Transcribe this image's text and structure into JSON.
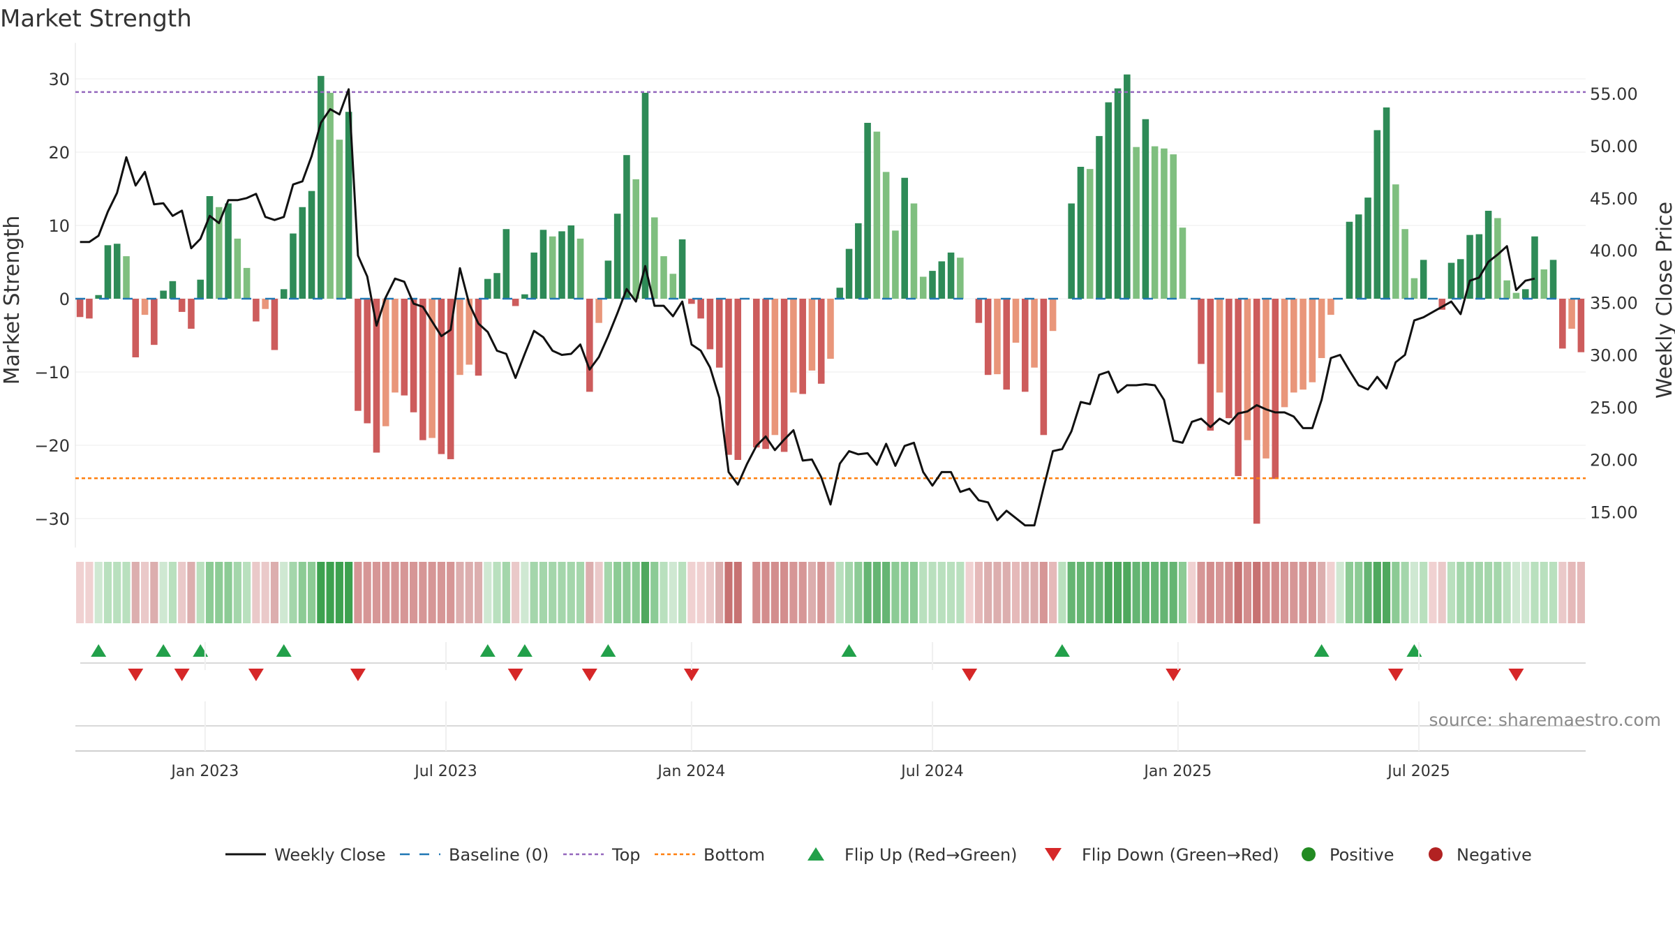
{
  "chart_data": {
    "type": "bar",
    "title": "Market Strength",
    "ylabel_left": "Market Strength",
    "ylabel_right": "Weekly Close Price",
    "ylim_left": [
      -33,
      33
    ],
    "ylim_right": [
      12.25,
      58.5
    ],
    "yticks_left": [
      "30",
      "20",
      "10",
      "0",
      "−10",
      "−20",
      "−30"
    ],
    "yticks_left_values": [
      30,
      20,
      10,
      0,
      -10,
      -20,
      -30
    ],
    "yticks_right": [
      "55.00",
      "50.00",
      "45.00",
      "40.00",
      "35.00",
      "30.00",
      "25.00",
      "20.00",
      "15.00"
    ],
    "yticks_right_values": [
      55,
      50,
      45,
      40,
      35,
      30,
      25,
      20,
      15
    ],
    "xticks": [
      {
        "label": "Jan 2023",
        "week": 14
      },
      {
        "label": "Jul 2023",
        "week": 40
      },
      {
        "label": "Jan 2024",
        "week": 66.5
      },
      {
        "label": "Jul 2024",
        "week": 92.5
      },
      {
        "label": "Jan 2025",
        "week": 119
      },
      {
        "label": "Jul 2025",
        "week": 145
      }
    ],
    "top_line": 28.2,
    "bottom_line": -24.5,
    "source": "source: sharemaestro.com",
    "legend": [
      "Weekly Close",
      "Baseline (0)",
      "Top",
      "Bottom",
      "Flip Up (Red→Green)",
      "Flip Down (Green→Red)",
      "Positive",
      "Negative"
    ],
    "strength": [
      -2.5,
      -2.7,
      0.5,
      7.3,
      7.5,
      5.8,
      -8,
      -2.2,
      -6.3,
      1.1,
      2.4,
      -1.8,
      -4.1,
      2.6,
      14,
      12.5,
      13,
      8.2,
      4.2,
      -3.1,
      -1.4,
      -7,
      1.3,
      8.9,
      12.5,
      14.7,
      30.4,
      28.1,
      21.7,
      25.5,
      -15.3,
      -17,
      -21,
      -17.4,
      -12.8,
      -13.2,
      -15.5,
      -19.3,
      -19,
      -21.2,
      -21.9,
      -10.4,
      -9,
      -10.5,
      2.7,
      3.5,
      9.5,
      -1,
      0.6,
      6.3,
      9.4,
      8.5,
      9.2,
      10,
      8.2,
      -12.7,
      -3.3,
      5.2,
      11.6,
      19.6,
      16.3,
      28.1,
      11.1,
      5.8,
      3.4,
      8.1,
      -0.7,
      -2.7,
      -6.9,
      -9.4,
      -21.3,
      -22,
      0,
      -20.3,
      -20.5,
      -18.6,
      -20.9,
      -12.8,
      -13,
      -9.8,
      -11.6,
      -8.2,
      1.5,
      6.8,
      10.3,
      24,
      22.8,
      17.3,
      9.3,
      16.5,
      13,
      3,
      3.8,
      5.1,
      6.3,
      5.6,
      0,
      -3.3,
      -10.4,
      -10.3,
      -12.4,
      -6,
      -12.7,
      -9.4,
      -18.6,
      -4.4,
      0,
      13,
      18,
      17.7,
      22.2,
      26.8,
      28.7,
      30.6,
      20.7,
      24.5,
      20.8,
      20.5,
      19.7,
      9.7,
      0,
      -8.9,
      -18,
      -12.8,
      -16.3,
      -24.2,
      -19.3,
      -30.7,
      -21.8,
      -24.6,
      -14.8,
      -12.8,
      -12.4,
      -11.4,
      -8.1,
      -2.2,
      0,
      10.5,
      11.5,
      13.8,
      23,
      26.1,
      15.6,
      9.5,
      2.8,
      5.3,
      0,
      -1.5,
      4.9,
      5.4,
      8.7,
      8.8,
      12,
      11,
      2.5,
      0.8,
      1.3,
      8.5,
      4,
      5.3,
      -6.8,
      -4.1,
      -7.3
    ],
    "close": [
      40.8,
      40.8,
      41.4,
      43.7,
      45.5,
      48.9,
      46.2,
      47.5,
      44.4,
      44.5,
      43.3,
      43.8,
      40.2,
      41.1,
      43.3,
      42.6,
      44.8,
      44.8,
      45,
      45.4,
      43.2,
      42.9,
      43.2,
      46.3,
      46.6,
      49,
      52.2,
      53.5,
      53,
      55.4,
      39.5,
      37.5,
      32.8,
      35.5,
      37.3,
      37,
      34.9,
      34.6,
      33.2,
      31.8,
      32.4,
      38.3,
      34.9,
      33,
      32.2,
      30.4,
      30.1,
      27.8,
      30.1,
      32.3,
      31.7,
      30.4,
      30,
      30.1,
      31,
      28.6,
      29.8,
      31.8,
      34,
      36.3,
      35.1,
      38.5,
      34.7,
      34.7,
      33.7,
      35.1,
      31,
      30.4,
      28.8,
      25.9,
      18.8,
      17.6,
      19.6,
      21.3,
      22.2,
      20.9,
      21.9,
      22.8,
      19.9,
      20,
      18.3,
      15.7,
      19.6,
      20.8,
      20.5,
      20.6,
      19.5,
      21.5,
      19.4,
      21.3,
      21.6,
      18.8,
      17.5,
      18.8,
      18.8,
      16.9,
      17.2,
      16.1,
      15.9,
      14.2,
      15.1,
      14.4,
      13.7,
      13.7,
      17.3,
      20.8,
      21,
      22.7,
      25.5,
      25.3,
      28.1,
      28.4,
      26.4,
      27.1,
      27.1,
      27.2,
      27.1,
      25.7,
      21.8,
      21.6,
      23.6,
      23.9,
      23.1,
      23.9,
      23.4,
      24.4,
      24.6,
      25.2,
      24.8,
      24.5,
      24.5,
      24.1,
      23,
      23,
      25.7,
      29.7,
      30,
      28.5,
      27.1,
      26.7,
      27.9,
      26.8,
      29.3,
      30,
      33.3,
      33.6,
      34.1,
      34.6,
      35.1,
      33.9,
      37.1,
      37.4,
      38.9,
      39.6,
      40.4,
      36.2,
      37.1,
      37.3
    ],
    "regime_strip": [
      "#f0d1d1",
      "#f0d1d1",
      "#cfe8d2",
      "#b9e0be",
      "#b9e0be",
      "#b9e0be",
      "#dcaeae",
      "#eac9c9",
      "#dcaeae",
      "#cfe8d2",
      "#b9e0be",
      "#eac9c9",
      "#dcaeae",
      "#b9e0be",
      "#8ccb95",
      "#8ccb95",
      "#8ccb95",
      "#a4d6ab",
      "#b9e0be",
      "#eac9c9",
      "#eac9c9",
      "#dcaeae",
      "#cfe8d2",
      "#a4d6ab",
      "#8ccb95",
      "#8ccb95",
      "#3da14f",
      "#3da14f",
      "#3da14f",
      "#3da14f",
      "#d69696",
      "#d69696",
      "#d69696",
      "#d69696",
      "#d69696",
      "#d69696",
      "#d69696",
      "#d69696",
      "#d69696",
      "#d69696",
      "#d69696",
      "#dcaeae",
      "#dcaeae",
      "#dcaeae",
      "#cfe8d2",
      "#b9e0be",
      "#a4d6ab",
      "#eac9c9",
      "#cfe8d2",
      "#a4d6ab",
      "#a4d6ab",
      "#a4d6ab",
      "#a4d6ab",
      "#a4d6ab",
      "#a4d6ab",
      "#dcaeae",
      "#eac9c9",
      "#a4d6ab",
      "#8ccb95",
      "#8ccb95",
      "#8ccb95",
      "#4fa85e",
      "#8ccb95",
      "#b9e0be",
      "#cfe8d2",
      "#b9e0be",
      "#f0d1d1",
      "#f0d1d1",
      "#eac9c9",
      "#dcaeae",
      "#c77272",
      "#c77272",
      "#ffffff",
      "#d38d8d",
      "#d38d8d",
      "#d38d8d",
      "#d38d8d",
      "#d69696",
      "#d69696",
      "#dcaeae",
      "#d69696",
      "#dcaeae",
      "#b9e0be",
      "#a4d6ab",
      "#8ccb95",
      "#65b573",
      "#65b573",
      "#65b573",
      "#8ccb95",
      "#8ccb95",
      "#8ccb95",
      "#b9e0be",
      "#b9e0be",
      "#b9e0be",
      "#b9e0be",
      "#b9e0be",
      "#f0d1d1",
      "#e5b9b9",
      "#dcaeae",
      "#dcaeae",
      "#dcaeae",
      "#e5b9b9",
      "#dcaeae",
      "#dcaeae",
      "#d69696",
      "#e5b9b9",
      "#b9e0be",
      "#65b573",
      "#65b573",
      "#65b573",
      "#65b573",
      "#4fa85e",
      "#4fa85e",
      "#4fa85e",
      "#65b573",
      "#65b573",
      "#65b573",
      "#65b573",
      "#65b573",
      "#8ccb95",
      "#f0d1d1",
      "#d69696",
      "#d38d8d",
      "#d69696",
      "#d38d8d",
      "#c77272",
      "#d38d8d",
      "#c77272",
      "#d38d8d",
      "#d38d8d",
      "#d69696",
      "#d69696",
      "#d69696",
      "#d69696",
      "#dcaeae",
      "#f0d1d1",
      "#cfe8d2",
      "#8ccb95",
      "#8ccb95",
      "#65b573",
      "#4fa85e",
      "#4fa85e",
      "#8ccb95",
      "#a4d6ab",
      "#cfe8d2",
      "#b9e0be",
      "#f0d1d1",
      "#eac9c9",
      "#b9e0be",
      "#a4d6ab",
      "#a4d6ab",
      "#a4d6ab",
      "#a4d6ab",
      "#a4d6ab",
      "#b9e0be",
      "#cfe8d2",
      "#cfe8d2",
      "#b9e0be",
      "#b9e0be",
      "#b9e0be",
      "#eac9c9",
      "#e5b9b9",
      "#e5b9b9"
    ],
    "flips_up": [
      2,
      9,
      13,
      22,
      44,
      48,
      57,
      83,
      106,
      134,
      144
    ],
    "flips_down": [
      6,
      11,
      19,
      30,
      47,
      55,
      66,
      96,
      118,
      142,
      155
    ]
  },
  "colors": {
    "pos_strong": "#2e8b57",
    "pos_weak": "#7fbf7f",
    "neg_strong": "#cd5c5c",
    "neg_weak": "#e9967a",
    "line": "#111111",
    "baseline": "#1f77b4",
    "top": "#9467bd",
    "bottom": "#ff7f0e",
    "flip_up": "#22a04a",
    "flip_down": "#d62728",
    "positive_marker": "#228b22",
    "negative_marker": "#b22222"
  }
}
